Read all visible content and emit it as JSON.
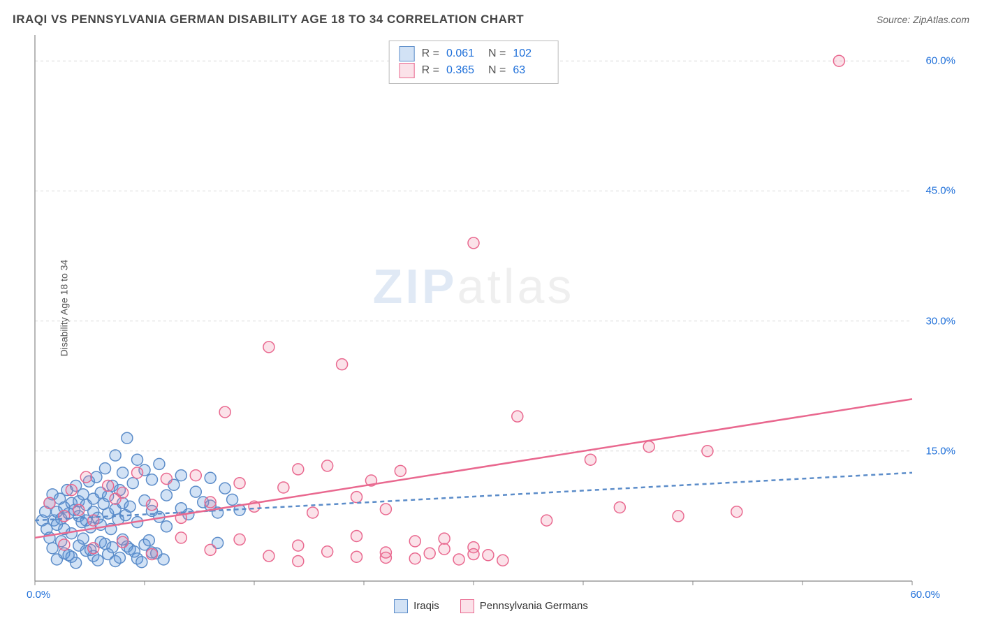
{
  "header": {
    "title": "IRAQI VS PENNSYLVANIA GERMAN DISABILITY AGE 18 TO 34 CORRELATION CHART",
    "source": "Source: ZipAtlas.com"
  },
  "y_axis_label": "Disability Age 18 to 34",
  "watermark": {
    "zip": "ZIP",
    "atlas": "atlas"
  },
  "chart": {
    "type": "scatter",
    "xlim": [
      0,
      60
    ],
    "ylim": [
      0,
      63
    ],
    "xticks": [
      0,
      7.5,
      15,
      22.5,
      30,
      37.5,
      45,
      52.5,
      60
    ],
    "yticks": [
      15,
      30,
      45,
      60
    ],
    "ytick_labels": [
      "15.0%",
      "30.0%",
      "45.0%",
      "60.0%"
    ],
    "x_start_label": "0.0%",
    "x_end_label": "60.0%",
    "grid_color": "#d9d9d9",
    "axis_color": "#888888",
    "background_color": "#ffffff",
    "marker_radius": 8,
    "marker_stroke_width": 1.5,
    "trend_line_width": 2.5,
    "series": {
      "iraqis": {
        "label": "Iraqis",
        "fill": "rgba(94,151,219,0.28)",
        "stroke": "#5b8cc9",
        "trend_start": [
          0,
          7.0
        ],
        "trend_end": [
          60,
          12.5
        ],
        "trend_dash": "6 5",
        "points": [
          [
            0.5,
            7
          ],
          [
            0.7,
            8
          ],
          [
            0.8,
            6
          ],
          [
            1,
            9
          ],
          [
            1,
            5
          ],
          [
            1.2,
            10
          ],
          [
            1.3,
            7
          ],
          [
            1.5,
            8
          ],
          [
            1.5,
            6.5
          ],
          [
            1.7,
            9.5
          ],
          [
            1.8,
            7.2
          ],
          [
            2,
            8.5
          ],
          [
            2,
            6
          ],
          [
            2.2,
            10.5
          ],
          [
            2.3,
            7.8
          ],
          [
            2.5,
            9
          ],
          [
            2.5,
            5.5
          ],
          [
            2.7,
            8.2
          ],
          [
            2.8,
            11
          ],
          [
            3,
            7.5
          ],
          [
            3,
            9.2
          ],
          [
            3.2,
            6.8
          ],
          [
            3.3,
            10
          ],
          [
            3.5,
            8.8
          ],
          [
            3.5,
            7
          ],
          [
            3.7,
            11.5
          ],
          [
            3.8,
            6.2
          ],
          [
            4,
            9.5
          ],
          [
            4,
            8
          ],
          [
            4.2,
            12
          ],
          [
            4.3,
            7.3
          ],
          [
            4.5,
            10.2
          ],
          [
            4.5,
            6.5
          ],
          [
            4.7,
            8.9
          ],
          [
            4.8,
            13
          ],
          [
            5,
            7.8
          ],
          [
            5,
            9.8
          ],
          [
            5.2,
            6
          ],
          [
            5.3,
            11
          ],
          [
            5.5,
            8.3
          ],
          [
            5.5,
            14.5
          ],
          [
            5.7,
            7.1
          ],
          [
            5.8,
            10.5
          ],
          [
            6,
            9
          ],
          [
            6,
            12.5
          ],
          [
            6.2,
            7.6
          ],
          [
            6.3,
            16.5
          ],
          [
            6.5,
            8.6
          ],
          [
            6.7,
            11.3
          ],
          [
            7,
            14
          ],
          [
            7,
            6.8
          ],
          [
            7.5,
            9.3
          ],
          [
            7.5,
            12.8
          ],
          [
            8,
            8.1
          ],
          [
            8,
            11.7
          ],
          [
            8.5,
            7.4
          ],
          [
            8.5,
            13.5
          ],
          [
            9,
            9.9
          ],
          [
            9,
            6.3
          ],
          [
            9.5,
            11.1
          ],
          [
            10,
            8.4
          ],
          [
            10,
            12.2
          ],
          [
            10.5,
            7.7
          ],
          [
            11,
            10.3
          ],
          [
            11.5,
            9.1
          ],
          [
            12,
            8.7
          ],
          [
            12,
            11.9
          ],
          [
            12.5,
            7.9
          ],
          [
            13,
            10.7
          ],
          [
            13.5,
            9.4
          ],
          [
            14,
            8.2
          ],
          [
            1.5,
            2.5
          ],
          [
            2,
            3.2
          ],
          [
            2.5,
            2.8
          ],
          [
            3,
            4.1
          ],
          [
            3.5,
            3.5
          ],
          [
            4,
            2.9
          ],
          [
            4.5,
            4.5
          ],
          [
            5,
            3.1
          ],
          [
            5.5,
            2.3
          ],
          [
            6,
            4.8
          ],
          [
            6.5,
            3.7
          ],
          [
            7,
            2.6
          ],
          [
            7.5,
            4.2
          ],
          [
            8,
            3.3
          ],
          [
            1.2,
            3.8
          ],
          [
            1.8,
            4.6
          ],
          [
            2.3,
            3.0
          ],
          [
            2.8,
            2.1
          ],
          [
            3.3,
            4.9
          ],
          [
            3.8,
            3.6
          ],
          [
            4.3,
            2.4
          ],
          [
            4.8,
            4.3
          ],
          [
            5.3,
            3.9
          ],
          [
            5.8,
            2.7
          ],
          [
            6.3,
            4.0
          ],
          [
            6.8,
            3.4
          ],
          [
            7.3,
            2.2
          ],
          [
            7.8,
            4.7
          ],
          [
            8.3,
            3.2
          ],
          [
            8.8,
            2.5
          ],
          [
            12.5,
            4.4
          ]
        ]
      },
      "penn_germans": {
        "label": "Pennsylvania Germans",
        "fill": "rgba(236,122,155,0.22)",
        "stroke": "#e9688f",
        "trend_start": [
          0,
          5.0
        ],
        "trend_end": [
          60,
          21.0
        ],
        "trend_dash": "",
        "points": [
          [
            1,
            9
          ],
          [
            2,
            7.5
          ],
          [
            2.5,
            10.5
          ],
          [
            3,
            8.2
          ],
          [
            3.5,
            12
          ],
          [
            4,
            7
          ],
          [
            5,
            11
          ],
          [
            5.5,
            9.5
          ],
          [
            6,
            10.2
          ],
          [
            7,
            12.5
          ],
          [
            8,
            8.8
          ],
          [
            9,
            11.8
          ],
          [
            10,
            7.3
          ],
          [
            11,
            12.2
          ],
          [
            12,
            9.1
          ],
          [
            13,
            19.5
          ],
          [
            14,
            11.3
          ],
          [
            15,
            8.6
          ],
          [
            16,
            27
          ],
          [
            17,
            10.8
          ],
          [
            18,
            12.9
          ],
          [
            19,
            7.9
          ],
          [
            20,
            13.3
          ],
          [
            21,
            25
          ],
          [
            22,
            9.7
          ],
          [
            23,
            11.6
          ],
          [
            24,
            8.3
          ],
          [
            25,
            12.7
          ],
          [
            30,
            39
          ],
          [
            33,
            19
          ],
          [
            35,
            7
          ],
          [
            38,
            14
          ],
          [
            40,
            8.5
          ],
          [
            42,
            15.5
          ],
          [
            44,
            7.5
          ],
          [
            46,
            15
          ],
          [
            48,
            8
          ],
          [
            55,
            60
          ],
          [
            2,
            4.2
          ],
          [
            4,
            3.8
          ],
          [
            6,
            4.5
          ],
          [
            8,
            3.1
          ],
          [
            10,
            5.0
          ],
          [
            12,
            3.6
          ],
          [
            14,
            4.8
          ],
          [
            16,
            2.9
          ],
          [
            18,
            4.1
          ],
          [
            20,
            3.4
          ],
          [
            22,
            5.2
          ],
          [
            24,
            2.7
          ],
          [
            26,
            4.6
          ],
          [
            27,
            3.2
          ],
          [
            28,
            4.9
          ],
          [
            29,
            2.5
          ],
          [
            30,
            3.9
          ],
          [
            31,
            3.0
          ],
          [
            18,
            2.3
          ],
          [
            22,
            2.8
          ],
          [
            24,
            3.3
          ],
          [
            26,
            2.6
          ],
          [
            28,
            3.7
          ],
          [
            30,
            3.1
          ],
          [
            32,
            2.4
          ]
        ]
      }
    }
  },
  "stats_box": {
    "rows": [
      {
        "series": "iraqis",
        "R_label": "R =",
        "R": "0.061",
        "N_label": "N =",
        "N": "102"
      },
      {
        "series": "penn_germans",
        "R_label": "R =",
        "R": "0.365",
        "N_label": "N =",
        "N": "63"
      }
    ]
  },
  "bottom_legend": [
    {
      "series": "iraqis"
    },
    {
      "series": "penn_germans"
    }
  ]
}
